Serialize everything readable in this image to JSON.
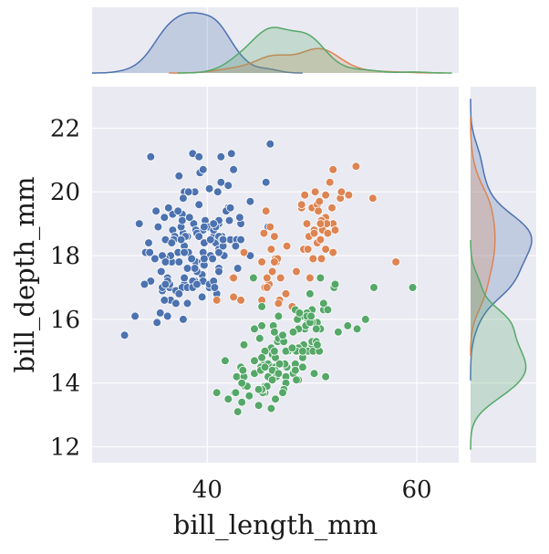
{
  "chart_data": {
    "type": "scatter",
    "title": "",
    "xlabel": "bill_length_mm",
    "ylabel": "bill_depth_mm",
    "xlim": [
      29,
      64
    ],
    "ylim": [
      11.5,
      23.3
    ],
    "xticks": [
      40,
      60
    ],
    "yticks": [
      12,
      14,
      16,
      18,
      20,
      22
    ],
    "grid": true,
    "legend": "none",
    "marginals": {
      "top": "kde",
      "right": "kde"
    },
    "series": [
      {
        "color": "#4c72b0",
        "x": [
          39.1,
          39.5,
          40.3,
          36.7,
          39.3,
          38.9,
          39.2,
          34.1,
          42.0,
          37.8,
          37.8,
          41.1,
          38.6,
          34.6,
          36.6,
          38.7,
          42.5,
          34.4,
          46.0,
          37.8,
          37.7,
          35.9,
          38.2,
          38.8,
          35.3,
          40.6,
          40.5,
          37.9,
          40.5,
          39.5,
          37.2,
          39.5,
          40.9,
          36.4,
          39.2,
          38.8,
          42.2,
          37.6,
          39.8,
          36.5,
          40.8,
          36.0,
          44.1,
          37.0,
          39.6,
          41.1,
          37.5,
          36.0,
          42.3,
          39.6,
          40.1,
          35.0,
          42.0,
          34.5,
          41.4,
          39.0,
          40.6,
          36.5,
          37.6,
          35.7,
          41.3,
          37.6,
          41.1,
          36.4,
          41.6,
          35.5,
          41.1,
          35.9,
          41.8,
          33.5,
          39.7,
          39.6,
          45.8,
          35.5,
          42.8,
          40.9,
          37.2,
          36.2,
          42.1,
          34.6,
          42.9,
          36.7,
          35.1,
          37.3,
          41.3,
          36.3,
          36.9,
          38.3,
          38.9,
          35.7,
          41.1,
          34.0,
          39.6,
          36.2,
          40.8,
          38.1,
          40.3,
          33.1,
          43.2,
          35.0,
          41.0,
          37.7,
          37.8,
          37.9,
          39.7,
          38.6,
          38.2,
          38.1,
          43.2,
          38.1,
          45.6,
          39.7,
          42.2,
          39.6,
          42.7,
          38.6,
          37.3,
          35.7,
          41.1,
          36.2,
          37.7,
          40.2,
          41.4,
          35.2,
          40.6,
          38.8,
          41.5,
          39.0,
          44.1,
          38.5,
          43.1,
          36.8,
          37.5,
          38.1,
          41.1,
          35.6,
          40.2,
          37.0,
          39.7,
          40.2,
          40.6,
          32.1,
          40.7,
          37.3,
          39.0,
          39.2,
          36.6,
          36.0,
          37.8,
          36.0,
          41.5
        ],
        "y": [
          18.7,
          17.4,
          18.0,
          19.3,
          20.6,
          17.8,
          19.6,
          18.1,
          20.2,
          17.1,
          17.3,
          17.6,
          21.2,
          21.1,
          17.8,
          19.0,
          20.7,
          18.4,
          21.5,
          18.3,
          18.7,
          19.2,
          18.1,
          17.2,
          18.9,
          18.6,
          17.9,
          18.6,
          18.9,
          16.7,
          18.1,
          17.8,
          18.9,
          17.0,
          21.1,
          20.0,
          18.5,
          19.3,
          19.1,
          18.0,
          18.4,
          18.5,
          19.7,
          16.9,
          18.8,
          19.0,
          18.9,
          17.9,
          21.2,
          17.7,
          18.9,
          17.9,
          19.5,
          18.1,
          18.6,
          17.5,
          18.8,
          16.6,
          19.1,
          16.9,
          21.1,
          17.0,
          18.2,
          17.1,
          18.0,
          16.2,
          19.1,
          16.6,
          19.4,
          19.0,
          18.4,
          17.2,
          18.9,
          17.5,
          18.5,
          16.8,
          19.4,
          16.1,
          19.1,
          17.2,
          17.6,
          18.8,
          19.4,
          17.8,
          20.3,
          19.5,
          18.6,
          19.2,
          18.8,
          18.0,
          18.1,
          17.1,
          18.1,
          17.3,
          18.9,
          18.6,
          18.5,
          16.1,
          18.5,
          17.9,
          20.0,
          16.0,
          20.0,
          18.6,
          18.9,
          17.2,
          20.0,
          17.0,
          19.0,
          16.5,
          20.3,
          17.7,
          19.5,
          20.7,
          18.3,
          17.0,
          20.5,
          17.0,
          18.6,
          17.2,
          19.8,
          17.0,
          18.5,
          15.9,
          19.0,
          17.6,
          18.3,
          17.1,
          18.0,
          17.9,
          19.2,
          18.5,
          18.5,
          17.6,
          17.5,
          17.5,
          20.1,
          16.5,
          17.9,
          17.1,
          17.2,
          15.5,
          17.0,
          16.8,
          18.7,
          18.6,
          18.4,
          17.8,
          18.1,
          17.1,
          18.5
        ]
      },
      {
        "color": "#dd8452",
        "x": [
          46.5,
          50.0,
          51.3,
          45.4,
          52.7,
          45.2,
          46.1,
          51.3,
          46.0,
          51.3,
          46.6,
          51.7,
          47.0,
          52.0,
          45.9,
          50.5,
          50.3,
          58.0,
          46.4,
          49.2,
          42.4,
          48.5,
          43.2,
          50.6,
          46.7,
          52.0,
          50.5,
          49.5,
          46.4,
          52.8,
          40.9,
          54.2,
          42.5,
          51.0,
          49.7,
          47.5,
          47.6,
          52.0,
          46.9,
          53.5,
          49.0,
          46.2,
          50.9,
          45.5,
          50.9,
          50.8,
          50.1,
          49.0,
          51.5,
          49.8,
          48.1,
          51.4,
          45.7,
          50.7,
          42.5,
          52.2,
          45.2,
          49.3,
          50.2,
          45.6,
          51.9,
          46.8,
          45.7,
          55.8,
          43.5,
          49.6,
          50.8,
          50.2
        ],
        "y": [
          17.9,
          19.5,
          19.2,
          18.7,
          19.8,
          17.8,
          18.2,
          18.2,
          18.9,
          19.9,
          17.8,
          20.3,
          17.3,
          18.1,
          17.1,
          19.6,
          20.0,
          17.8,
          18.6,
          18.2,
          17.3,
          17.5,
          16.6,
          19.4,
          17.9,
          19.0,
          18.4,
          19.0,
          17.8,
          20.0,
          16.6,
          20.8,
          16.7,
          18.8,
          18.6,
          16.8,
          18.3,
          20.7,
          16.6,
          19.9,
          19.5,
          17.5,
          19.1,
          17.0,
          17.9,
          18.5,
          17.9,
          19.6,
          18.7,
          17.3,
          16.4,
          19.0,
          17.3,
          19.7,
          17.3,
          18.8,
          16.6,
          19.9,
          18.8,
          19.4,
          19.5,
          16.5,
          17.0,
          19.8,
          18.1,
          18.2,
          19.0,
          18.7
        ]
      },
      {
        "color": "#55a868",
        "x": [
          46.1,
          50.0,
          48.7,
          50.0,
          47.6,
          46.5,
          45.4,
          46.7,
          43.3,
          46.8,
          40.9,
          49.0,
          45.5,
          48.4,
          45.8,
          49.3,
          42.0,
          49.2,
          46.2,
          48.7,
          50.2,
          45.1,
          46.5,
          46.3,
          42.9,
          46.1,
          44.5,
          47.8,
          48.2,
          50.0,
          47.3,
          42.8,
          45.1,
          59.6,
          49.1,
          48.4,
          42.6,
          44.4,
          44.0,
          48.7,
          42.7,
          49.6,
          45.3,
          49.6,
          50.5,
          43.6,
          45.5,
          50.5,
          44.9,
          45.2,
          46.6,
          48.5,
          45.1,
          50.1,
          46.5,
          45.0,
          43.8,
          45.5,
          43.2,
          50.4,
          45.3,
          46.2,
          45.7,
          54.3,
          45.8,
          49.8,
          46.2,
          49.5,
          43.5,
          50.7,
          47.7,
          46.4,
          48.2,
          46.5,
          46.4,
          48.6,
          47.5,
          51.1,
          45.2,
          45.2,
          49.1,
          52.5,
          47.4,
          50.0,
          44.9,
          50.8,
          43.4,
          51.3,
          47.5,
          52.1,
          47.5,
          52.2,
          45.5,
          49.5,
          44.5,
          50.8,
          49.4,
          46.9,
          48.4,
          51.1,
          48.5,
          55.9,
          47.2,
          49.1,
          47.3,
          46.8,
          41.7,
          53.4,
          43.3,
          48.1,
          50.5,
          49.8,
          43.5,
          51.5,
          46.2,
          55.1,
          44.5,
          48.8,
          47.2,
          46.8,
          50.4,
          45.2,
          49.9
        ],
        "y": [
          13.2,
          16.3,
          14.1,
          15.2,
          14.5,
          13.5,
          14.6,
          15.3,
          13.4,
          15.4,
          13.7,
          16.1,
          13.7,
          14.6,
          14.6,
          15.7,
          13.5,
          15.2,
          14.5,
          15.1,
          14.3,
          14.5,
          14.5,
          15.8,
          13.1,
          15.1,
          14.3,
          15.0,
          14.3,
          15.3,
          15.3,
          14.2,
          14.5,
          17.0,
          14.8,
          16.3,
          13.7,
          17.3,
          13.6,
          15.7,
          13.7,
          16.0,
          13.7,
          15.0,
          15.9,
          13.9,
          13.9,
          15.9,
          13.3,
          15.8,
          14.2,
          14.1,
          14.4,
          15.0,
          14.4,
          15.4,
          13.9,
          15.0,
          14.5,
          15.3,
          13.8,
          14.9,
          13.9,
          15.7,
          14.2,
          16.8,
          14.4,
          16.2,
          14.2,
          15.0,
          15.0,
          15.6,
          15.6,
          14.8,
          15.0,
          16.0,
          14.2,
          16.3,
          13.8,
          16.4,
          14.5,
          15.6,
          14.6,
          15.9,
          13.8,
          17.3,
          14.4,
          14.2,
          14.0,
          17.0,
          15.0,
          17.1,
          14.5,
          16.1,
          14.7,
          15.7,
          15.8,
          14.6,
          14.4,
          16.5,
          15.0,
          17.0,
          15.5,
          15.0,
          13.8,
          16.1,
          14.7,
          15.8,
          14.0,
          15.1,
          15.2,
          15.9,
          15.2,
          16.3,
          14.1,
          16.0,
          15.7,
          16.2,
          13.7,
          14.3,
          15.7,
          14.8,
          16.1
        ]
      }
    ]
  }
}
